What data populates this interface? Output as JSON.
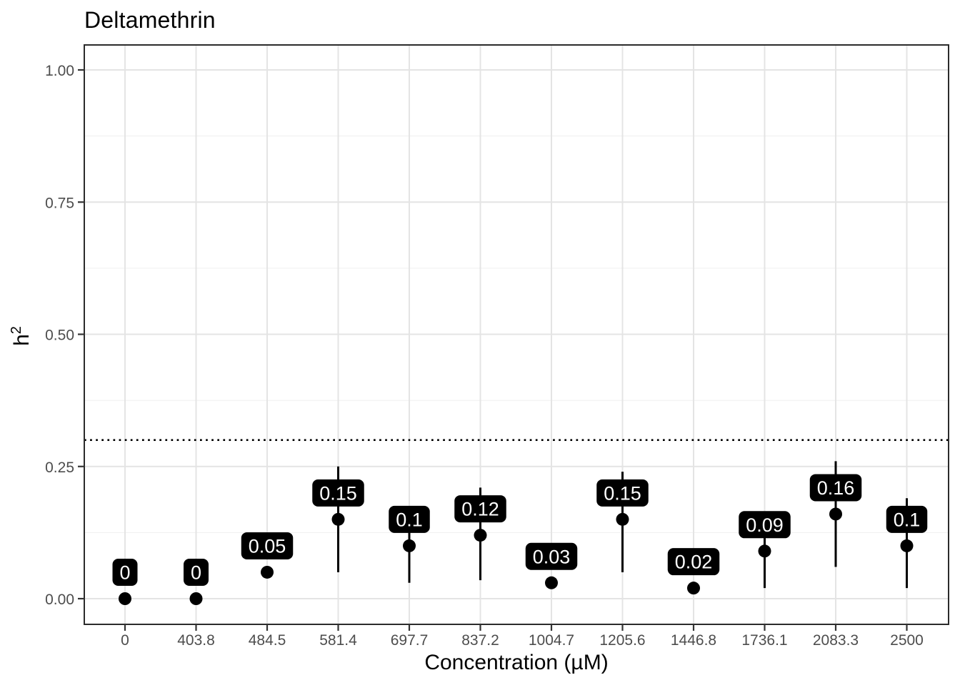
{
  "figure": {
    "background": "#ffffff"
  },
  "chart_data": {
    "type": "pointrange",
    "title": "Deltamethrin",
    "xlabel": "Concentration (µM)",
    "ylabel": "h²",
    "ylabel_base": "h",
    "ylabel_exponent": "2",
    "categories": [
      "0",
      "403.8",
      "484.5",
      "581.4",
      "697.7",
      "837.2",
      "1004.7",
      "1205.6",
      "1446.8",
      "1736.1",
      "2083.3",
      "2500"
    ],
    "values": [
      0,
      0,
      0.05,
      0.15,
      0.1,
      0.12,
      0.03,
      0.15,
      0.02,
      0.09,
      0.16,
      0.1
    ],
    "point_labels": [
      "0",
      "0",
      "0.05",
      "0.15",
      "0.1",
      "0.12",
      "0.03",
      "0.15",
      "0.02",
      "0.09",
      "0.16",
      "0.1"
    ],
    "error_low": [
      0,
      0,
      0.05,
      0.05,
      0.03,
      0.035,
      0.03,
      0.05,
      0.02,
      0.02,
      0.06,
      0.02
    ],
    "error_high": [
      0,
      0,
      0.05,
      0.25,
      0.17,
      0.21,
      0.03,
      0.24,
      0.02,
      0.16,
      0.26,
      0.19
    ],
    "reference_line_y": 0.3,
    "reference_line_style": "dotted",
    "y_ticks": {
      "labels": [
        "0.00",
        "0.25",
        "0.50",
        "0.75",
        "1.00"
      ],
      "values": [
        0,
        0.25,
        0.5,
        0.75,
        1.0
      ]
    },
    "y_minor_gridlines": [
      0.125,
      0.375,
      0.625,
      0.875
    ],
    "ylim": [
      -0.05,
      1.05
    ],
    "grid": true,
    "legend_position": "none",
    "colors": {
      "point": "#000000",
      "error_bar": "#000000",
      "label_background": "#000000",
      "label_text": "#ffffff",
      "grid_major": "#e4e4e4",
      "grid_minor": "#efefef",
      "panel_border": "#2b2b2b",
      "tick_mark": "#333333",
      "tick_label": "#4d4d4d",
      "reference_line": "#000000"
    }
  }
}
